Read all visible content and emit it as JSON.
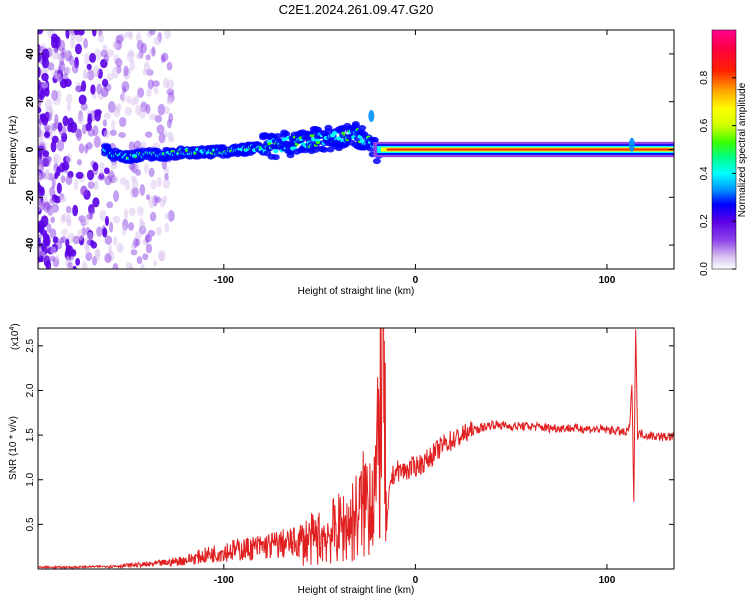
{
  "figure": {
    "title": "C2E1.2024.261.09.47.G20"
  },
  "chart_data": [
    {
      "type": "heatmap",
      "xlabel": "Height of straight line (km)",
      "ylabel": "Frequency (Hz)",
      "xlim": [
        -197,
        135
      ],
      "ylim": [
        -50,
        50
      ],
      "x_ticks": [
        -100,
        0,
        100
      ],
      "y_ticks": [
        -40,
        -20,
        0,
        20,
        40
      ],
      "colorbar": {
        "label": "Normalized spectral amplitude",
        "range": [
          0,
          1
        ],
        "ticks": [
          "0.0",
          "0.2",
          "0.4",
          "0.6",
          "0.8"
        ],
        "colors": [
          "#ffffff",
          "#d9c2f0",
          "#8e44e8",
          "#5a00e6",
          "#0000ff",
          "#0090ff",
          "#00ffff",
          "#00ff80",
          "#3cff00",
          "#d0ff00",
          "#ffff00",
          "#ffa000",
          "#ff2000",
          "#ff0040",
          "#ff0090"
        ]
      },
      "ridge": {
        "x": [
          -160,
          -150,
          -140,
          -130,
          -120,
          -110,
          -100,
          -90,
          -80,
          -70,
          -60,
          -50,
          -40,
          -30,
          -25,
          -22,
          -20,
          -15,
          -10,
          0,
          10,
          50,
          100,
          110,
          112,
          114,
          120,
          135
        ],
        "y": [
          -2,
          -3,
          -2,
          -2,
          -1,
          -1,
          -1,
          0,
          1,
          2,
          3,
          4,
          5,
          6,
          4,
          2,
          0,
          0,
          0,
          0,
          0,
          0,
          0,
          0,
          1,
          0,
          0,
          0
        ]
      }
    },
    {
      "type": "line",
      "xlabel": "Height of straight line (km)",
      "ylabel": "SNR (10 * v/v)",
      "y_scale_label": "(x10",
      "y_scale_exp": "4",
      "xlim": [
        -197,
        135
      ],
      "ylim": [
        0,
        2.7
      ],
      "x_ticks": [
        -100,
        0,
        100
      ],
      "y_ticks": [
        0.5,
        1.0,
        1.5,
        2.0,
        2.5
      ],
      "y_tick_labels": [
        "0.5",
        "1.0",
        "1.5",
        "2.0",
        "2.5"
      ],
      "line_color": "#e02020",
      "series": [
        {
          "x": [
            -197,
            -180,
            -160,
            -150,
            -140,
            -130,
            -120,
            -110,
            -100,
            -90,
            -80,
            -70,
            -60,
            -50,
            -40,
            -35,
            -30,
            -25,
            -20,
            -17,
            -15,
            -13,
            -10,
            -5,
            0,
            5,
            10,
            15,
            20,
            30,
            40,
            50,
            60,
            70,
            80,
            90,
            100,
            105,
            110,
            112,
            113,
            114,
            115,
            116,
            118,
            120,
            125,
            130,
            135
          ],
          "values": [
            0.02,
            0.02,
            0.03,
            0.04,
            0.05,
            0.07,
            0.1,
            0.15,
            0.2,
            0.22,
            0.25,
            0.28,
            0.3,
            0.35,
            0.45,
            0.5,
            0.6,
            0.8,
            1.0,
            2.6,
            0.4,
            1.0,
            1.1,
            1.1,
            1.15,
            1.2,
            1.3,
            1.4,
            1.45,
            1.55,
            1.62,
            1.6,
            1.6,
            1.58,
            1.58,
            1.57,
            1.56,
            1.55,
            1.52,
            1.6,
            2.1,
            0.8,
            2.7,
            1.5,
            1.52,
            1.5,
            1.49,
            1.48,
            1.48
          ]
        }
      ]
    }
  ]
}
